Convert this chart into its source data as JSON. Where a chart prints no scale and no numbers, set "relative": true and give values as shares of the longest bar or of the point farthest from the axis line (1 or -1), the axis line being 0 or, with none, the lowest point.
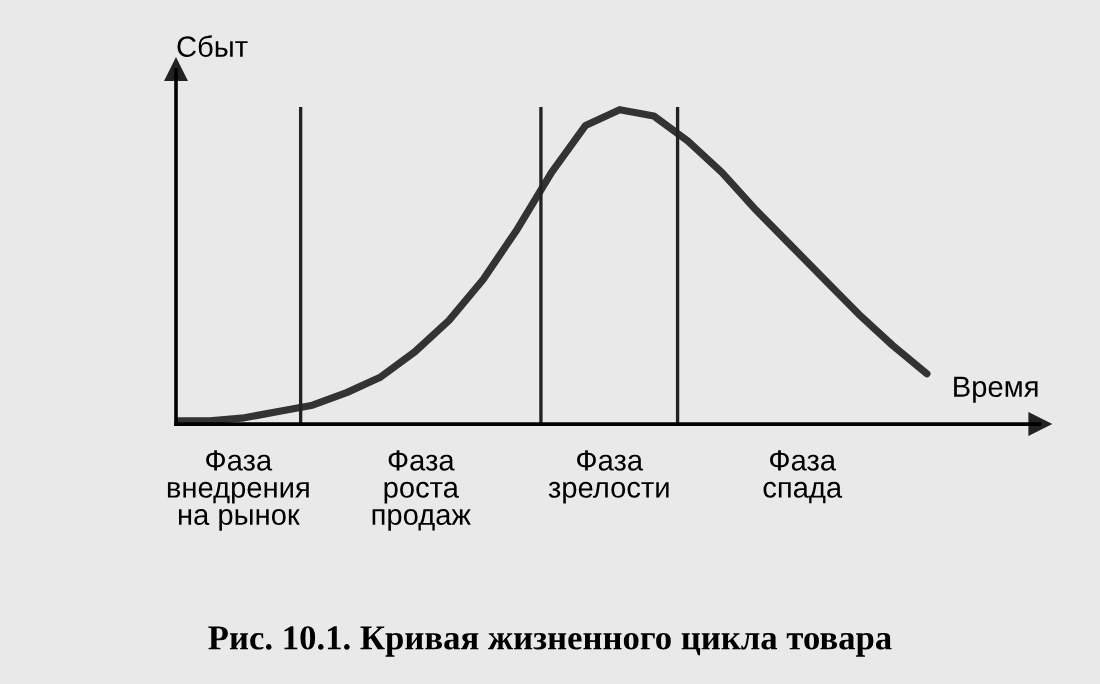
{
  "chart_data": {
    "type": "line",
    "relative": true,
    "xlabel": "Время",
    "ylabel": "Сбыт",
    "title": "Рис. 10.1. Кривая жизненного цикла товара",
    "categories": [
      null,
      null,
      null,
      null,
      null,
      null,
      null,
      null,
      null,
      null,
      null,
      null,
      null,
      null,
      null,
      null,
      null,
      null,
      null,
      null,
      null,
      null,
      null
    ],
    "series": [
      {
        "color": "#333333",
        "values": [
          0.01,
          0.01,
          0.02,
          0.04,
          0.06,
          0.1,
          0.15,
          0.23,
          0.33,
          0.46,
          0.62,
          0.8,
          0.95,
          1.0,
          0.98,
          0.9,
          0.8,
          0.68,
          0.57,
          0.46,
          0.35,
          0.25,
          0.16
        ]
      }
    ],
    "annotations": [
      "Фаза\nвнедрения\nна рынок",
      "Фаза\nроста\nпродаж",
      "Фаза\nзрелости",
      "Фаза\nспада"
    ],
    "grid": false,
    "legend": false
  }
}
